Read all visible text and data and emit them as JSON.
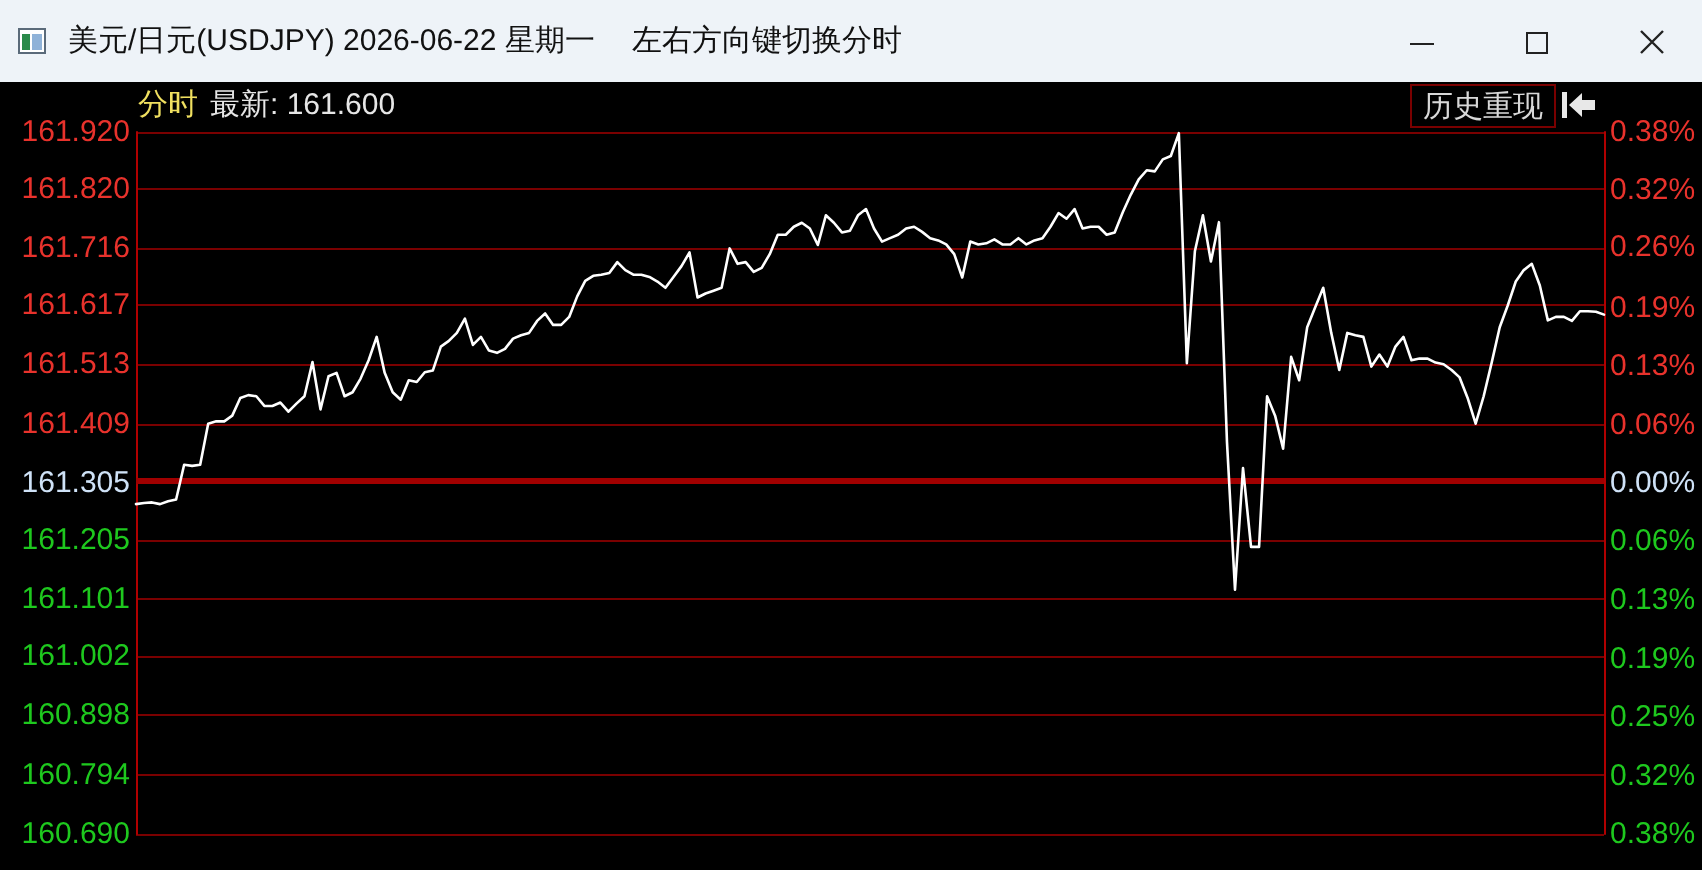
{
  "chart_data": {
    "type": "line",
    "title": "美元/日元(USDJPY) 2026-06-22 星期一",
    "subtitle": "左右方向键切换分时",
    "annotations": [
      "分时",
      "最新: 161.600",
      "历史重现"
    ],
    "categories": [
      null,
      null,
      null,
      null,
      null,
      null,
      null,
      null,
      null,
      null,
      null,
      null,
      null,
      null,
      null,
      null,
      null,
      null,
      null,
      null,
      null,
      null,
      null,
      null,
      null,
      null,
      null,
      null,
      null,
      null,
      null,
      null,
      null,
      null,
      null,
      null,
      null,
      null,
      null,
      null,
      null,
      null,
      null,
      null,
      null,
      null,
      null,
      null,
      null,
      null,
      null,
      null,
      null,
      null,
      null,
      null,
      null,
      null,
      null,
      null,
      null,
      null,
      null,
      null,
      null,
      null,
      null,
      null,
      null,
      null,
      null,
      null,
      null,
      null,
      null,
      null,
      null,
      null,
      null,
      null,
      null,
      null,
      null,
      null,
      null,
      null,
      null,
      null,
      null,
      null,
      null,
      null,
      null,
      null,
      null,
      null,
      null,
      null,
      null,
      null,
      null,
      null,
      null,
      null,
      null,
      null,
      null,
      null,
      null,
      null,
      null,
      null,
      null,
      null,
      null,
      null,
      null,
      null,
      null,
      null,
      null,
      null,
      null,
      null,
      null,
      null,
      null,
      null,
      null,
      null,
      null,
      null,
      null,
      null,
      null,
      null,
      null,
      null,
      null,
      null,
      null,
      null,
      null,
      null,
      null,
      null,
      null,
      null,
      null,
      null,
      null,
      null,
      null,
      null,
      null,
      null,
      null,
      null,
      null,
      null,
      null,
      null,
      null,
      null,
      null,
      null,
      null,
      null,
      null,
      null,
      null,
      null,
      null,
      null,
      null,
      null,
      null,
      null,
      null,
      null,
      null,
      null,
      null,
      null
    ],
    "values": [
      161.268,
      161.27,
      161.271,
      161.268,
      161.273,
      161.276,
      161.337,
      161.335,
      161.337,
      161.409,
      161.413,
      161.413,
      161.423,
      161.454,
      161.459,
      161.457,
      161.44,
      161.44,
      161.446,
      161.43,
      161.444,
      161.457,
      161.517,
      161.434,
      161.492,
      161.498,
      161.457,
      161.464,
      161.488,
      161.52,
      161.561,
      161.498,
      161.464,
      161.451,
      161.485,
      161.482,
      161.499,
      161.502,
      161.544,
      161.554,
      161.568,
      161.593,
      161.547,
      161.561,
      161.537,
      161.533,
      161.54,
      161.558,
      161.564,
      161.568,
      161.589,
      161.602,
      161.582,
      161.582,
      161.596,
      161.632,
      161.659,
      161.668,
      161.67,
      161.673,
      161.692,
      161.678,
      161.67,
      161.67,
      161.666,
      161.658,
      161.647,
      161.666,
      161.685,
      161.709,
      161.63,
      161.637,
      161.642,
      161.647,
      161.716,
      161.689,
      161.692,
      161.675,
      161.682,
      161.706,
      161.74,
      161.74,
      161.754,
      161.761,
      161.751,
      161.722,
      161.774,
      161.761,
      161.744,
      161.747,
      161.774,
      161.785,
      161.751,
      161.728,
      161.734,
      161.74,
      161.751,
      161.754,
      161.745,
      161.734,
      161.73,
      161.723,
      161.706,
      161.665,
      161.728,
      161.723,
      161.725,
      161.732,
      161.723,
      161.723,
      161.734,
      161.723,
      161.73,
      161.734,
      161.754,
      161.778,
      161.768,
      161.785,
      161.751,
      161.754,
      161.754,
      161.74,
      161.744,
      161.779,
      161.81,
      161.837,
      161.853,
      161.851,
      161.872,
      161.878,
      161.918,
      161.515,
      161.711,
      161.774,
      161.693,
      161.762,
      161.377,
      161.118,
      161.331,
      161.193,
      161.193,
      161.457,
      161.423,
      161.365,
      161.526,
      161.485,
      161.578,
      161.613,
      161.647,
      161.568,
      161.503,
      161.568,
      161.564,
      161.561,
      161.509,
      161.53,
      161.509,
      161.544,
      161.561,
      161.52,
      161.523,
      161.523,
      161.516,
      161.513,
      161.503,
      161.49,
      161.454,
      161.409,
      161.457,
      161.516,
      161.578,
      161.616,
      161.658,
      161.678,
      161.689,
      161.651,
      161.59,
      161.596,
      161.596,
      161.589,
      161.606,
      161.606,
      161.605,
      161.6
    ],
    "color": "#ffffff",
    "marker": "none",
    "ylim": [
      160.69,
      161.92
    ],
    "yticks": [
      {
        "value": 161.92,
        "label": "161.920"
      },
      {
        "value": 161.82,
        "label": "161.820"
      },
      161.716,
      161.617,
      161.513,
      161.409,
      161.305,
      161.205,
      161.101,
      161.002,
      160.898,
      160.794,
      {
        "value": 160.69,
        "label": "160.690"
      }
    ],
    "y2lim": [
      -0.38,
      0.38
    ],
    "y2ticks": [
      {
        "value": 0.38,
        "label": "0.38%"
      },
      {
        "value": 0.3167,
        "label": "0.32%"
      },
      {
        "value": 0.255,
        "label": "0.26%"
      },
      {
        "value": 0.19,
        "label": "0.19%"
      },
      {
        "value": 0.1267,
        "label": "0.13%"
      },
      {
        "value": 0.0633,
        "label": "0.06%"
      },
      {
        "value": 0,
        "label": "0.00%"
      },
      {
        "value": -0.0633,
        "label": "0.06%"
      },
      {
        "value": -0.1267,
        "label": "0.13%"
      },
      {
        "value": -0.19,
        "label": "0.19%"
      },
      {
        "value": -0.2533,
        "label": "0.25%"
      },
      {
        "value": -0.3167,
        "label": "0.32%"
      },
      {
        "value": -0.38,
        "label": "0.38%"
      }
    ],
    "ref_lines": [
      {
        "axis": "y",
        "value": 161.305,
        "color": "#a00000"
      }
    ],
    "grid": "y"
  }
}
